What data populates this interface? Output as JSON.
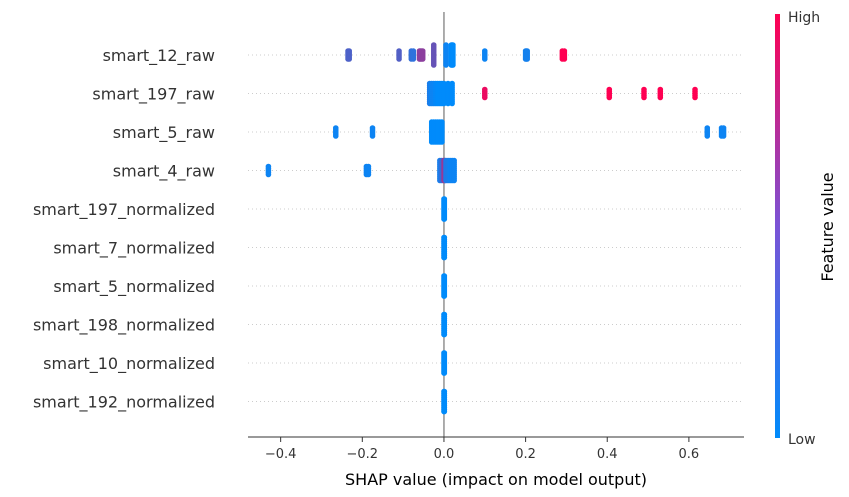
{
  "chart_data": {
    "type": "scatter",
    "subtype": "shap-beeswarm",
    "xlabel": "SHAP value (impact on model output)",
    "xlim": [
      -0.48,
      0.735
    ],
    "xticks": [
      -0.4,
      -0.2,
      0.0,
      0.2,
      0.4,
      0.6
    ],
    "xtick_labels": [
      "−0.4",
      "−0.2",
      "0.0",
      "0.2",
      "0.4",
      "0.6"
    ],
    "zero_line": 0.0,
    "row_gridlines": true,
    "colorbar": {
      "label": "Feature value",
      "high_label": "High",
      "low_label": "Low",
      "low_color": "#008bfb",
      "high_color": "#ff0052"
    },
    "features": [
      {
        "name": "smart_12_raw",
        "points": [
          {
            "x": -0.235,
            "v": 0.3
          },
          {
            "x": -0.232,
            "v": 0.3
          },
          {
            "x": -0.11,
            "v": 0.32
          },
          {
            "x": -0.08,
            "v": 0.2
          },
          {
            "x": -0.075,
            "v": 0.18
          },
          {
            "x": -0.06,
            "v": 0.55
          },
          {
            "x": -0.058,
            "v": 0.55
          },
          {
            "x": -0.055,
            "v": 0.55
          },
          {
            "x": -0.052,
            "v": 0.55
          },
          {
            "x": -0.025,
            "v": 0.4
          },
          {
            "x": 0.005,
            "v": 0.05
          },
          {
            "x": 0.018,
            "v": 0.0
          },
          {
            "x": 0.02,
            "v": 0.0
          },
          {
            "x": 0.022,
            "v": 0.0
          },
          {
            "x": 0.1,
            "v": 0.05
          },
          {
            "x": 0.2,
            "v": 0.08
          },
          {
            "x": 0.202,
            "v": 0.08
          },
          {
            "x": 0.204,
            "v": 0.08
          },
          {
            "x": 0.29,
            "v": 1.0
          },
          {
            "x": 0.295,
            "v": 1.0
          }
        ]
      },
      {
        "name": "smart_197_raw",
        "points": [
          {
            "x": -0.035,
            "v": 0.1
          },
          {
            "x": -0.03,
            "v": 0.05
          },
          {
            "x": -0.025,
            "v": 0.05
          },
          {
            "x": -0.02,
            "v": 0.02
          },
          {
            "x": -0.015,
            "v": 0.0
          },
          {
            "x": -0.01,
            "v": 0.0
          },
          {
            "x": -0.005,
            "v": 0.0
          },
          {
            "x": 0.0,
            "v": 0.0
          },
          {
            "x": 0.01,
            "v": 0.0
          },
          {
            "x": 0.02,
            "v": 0.0
          },
          {
            "x": 0.1,
            "v": 0.92
          },
          {
            "x": 0.405,
            "v": 1.0
          },
          {
            "x": 0.49,
            "v": 1.0
          },
          {
            "x": 0.53,
            "v": 1.0
          },
          {
            "x": 0.615,
            "v": 1.0
          }
        ]
      },
      {
        "name": "smart_5_raw",
        "points": [
          {
            "x": -0.265,
            "v": 0.05
          },
          {
            "x": -0.175,
            "v": 0.05
          },
          {
            "x": -0.03,
            "v": 0.0
          },
          {
            "x": -0.025,
            "v": 0.0
          },
          {
            "x": -0.02,
            "v": 0.0
          },
          {
            "x": -0.015,
            "v": 0.0
          },
          {
            "x": -0.01,
            "v": 0.0
          },
          {
            "x": -0.005,
            "v": 0.0
          },
          {
            "x": 0.645,
            "v": 0.05
          },
          {
            "x": 0.68,
            "v": 0.05
          },
          {
            "x": 0.685,
            "v": 0.05
          }
        ]
      },
      {
        "name": "smart_4_raw",
        "points": [
          {
            "x": -0.43,
            "v": 0.05
          },
          {
            "x": -0.19,
            "v": 0.05
          },
          {
            "x": -0.185,
            "v": 0.05
          },
          {
            "x": -0.01,
            "v": 0.1
          },
          {
            "x": -0.005,
            "v": 0.2
          },
          {
            "x": 0.0,
            "v": 0.55
          },
          {
            "x": 0.002,
            "v": 0.6
          },
          {
            "x": 0.005,
            "v": 0.1
          },
          {
            "x": 0.01,
            "v": 0.1
          },
          {
            "x": 0.015,
            "v": 0.05
          },
          {
            "x": 0.02,
            "v": 0.05
          },
          {
            "x": 0.025,
            "v": 0.05
          }
        ]
      },
      {
        "name": "smart_197_normalized",
        "points": [
          {
            "x": 0.0,
            "v": 0.0
          },
          {
            "x": 0.001,
            "v": 0.0
          }
        ]
      },
      {
        "name": "smart_7_normalized",
        "points": [
          {
            "x": 0.0,
            "v": 0.0
          },
          {
            "x": 0.001,
            "v": 0.0
          }
        ]
      },
      {
        "name": "smart_5_normalized",
        "points": [
          {
            "x": 0.0,
            "v": 0.0
          },
          {
            "x": 0.001,
            "v": 0.0
          }
        ]
      },
      {
        "name": "smart_198_normalized",
        "points": [
          {
            "x": 0.0,
            "v": 0.0
          },
          {
            "x": 0.001,
            "v": 0.0
          }
        ]
      },
      {
        "name": "smart_10_normalized",
        "points": [
          {
            "x": 0.0,
            "v": 0.0
          },
          {
            "x": 0.001,
            "v": 0.0
          }
        ]
      },
      {
        "name": "smart_192_normalized",
        "points": [
          {
            "x": 0.0,
            "v": 0.0
          },
          {
            "x": 0.001,
            "v": 0.0
          }
        ]
      }
    ]
  }
}
